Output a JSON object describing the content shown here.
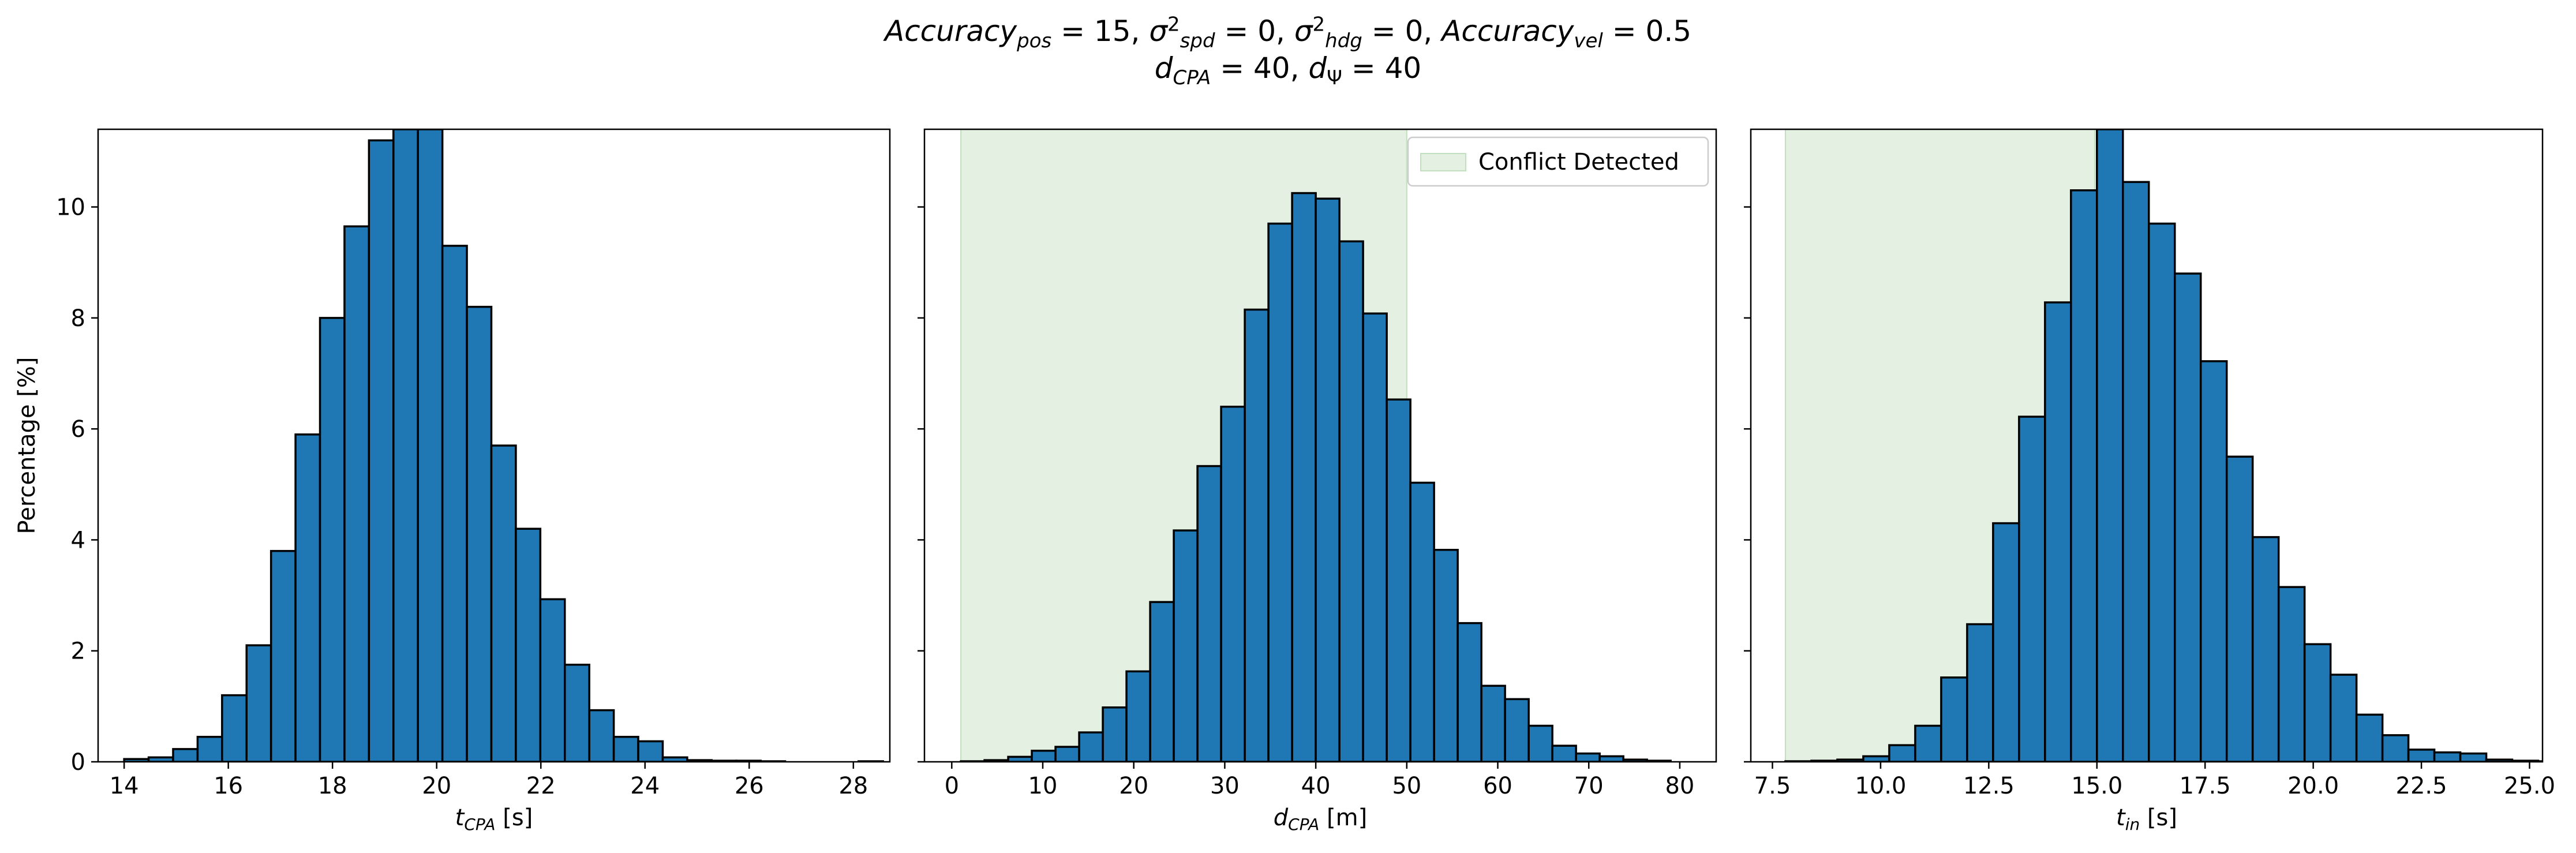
{
  "title": {
    "line1": [
      {
        "t": "Accuracy",
        "it": true
      },
      {
        "t": "pos",
        "sub": true,
        "it": true
      },
      {
        "t": " = 15, "
      },
      {
        "t": "σ",
        "it": true
      },
      {
        "t": "2",
        "sup": true
      },
      {
        "t": "spd",
        "sub": true,
        "it": true
      },
      {
        "t": " = 0, "
      },
      {
        "t": "σ",
        "it": true
      },
      {
        "t": "2",
        "sup": true
      },
      {
        "t": "hdg",
        "sub": true,
        "it": true
      },
      {
        "t": " = 0, "
      },
      {
        "t": "Accuracy",
        "it": true
      },
      {
        "t": "vel",
        "sub": true,
        "it": true
      },
      {
        "t": " = 0.5"
      }
    ],
    "line2": [
      {
        "t": "d",
        "it": true
      },
      {
        "t": "CPA",
        "sub": true,
        "it": true
      },
      {
        "t": " = 40, "
      },
      {
        "t": "d",
        "it": true
      },
      {
        "t": "Ψ",
        "sub": true
      },
      {
        "t": " = 40"
      }
    ]
  },
  "colors": {
    "bar_fill": "#1f77b4",
    "bar_edge": "#000000",
    "conflict_fill": "#e4f0e1",
    "conflict_edge": "#c2dfbf"
  },
  "chart_data": [
    {
      "type": "bar",
      "ylabel": "Percentage [%]",
      "xlabel_parts": [
        {
          "t": "t",
          "it": true
        },
        {
          "t": "CPA",
          "sub": true,
          "it": true
        },
        {
          "t": " [s]"
        }
      ],
      "xlim": [
        13.5,
        28.7
      ],
      "ylim": [
        0,
        11.4
      ],
      "xticks": [
        14,
        16,
        18,
        20,
        22,
        24,
        26,
        28
      ],
      "xtick_labels": [
        "14",
        "16",
        "18",
        "20",
        "22",
        "24",
        "26",
        "28"
      ],
      "yticks": [
        0,
        2,
        4,
        6,
        8,
        10
      ],
      "ytick_labels": [
        "0",
        "2",
        "4",
        "6",
        "8",
        "10"
      ],
      "bin_start": 14.0,
      "bin_width": 0.47,
      "values": [
        0.05,
        0.08,
        0.23,
        0.45,
        1.2,
        2.1,
        3.8,
        5.9,
        8.0,
        9.65,
        11.2,
        11.4,
        11.4,
        9.3,
        8.2,
        5.7,
        4.2,
        2.93,
        1.75,
        0.93,
        0.45,
        0.37,
        0.08,
        0.03,
        0.02,
        0.02,
        0.01,
        0.0,
        0.0,
        0.0,
        0.01
      ],
      "conflict_range": null,
      "legend": null
    },
    {
      "type": "bar",
      "ylabel": "",
      "xlabel_parts": [
        {
          "t": "d",
          "it": true
        },
        {
          "t": "CPA",
          "sub": true,
          "it": true
        },
        {
          "t": " [m]"
        }
      ],
      "xlim": [
        -3,
        84
      ],
      "ylim": [
        0,
        11.4
      ],
      "xticks": [
        0,
        10,
        20,
        30,
        40,
        50,
        60,
        70,
        80
      ],
      "xtick_labels": [
        "0",
        "10",
        "20",
        "30",
        "40",
        "50",
        "60",
        "70",
        "80"
      ],
      "yticks": [
        0,
        2,
        4,
        6,
        8,
        10
      ],
      "ytick_labels": [
        "",
        "",
        "",
        "",
        "",
        ""
      ],
      "bin_start": 1.0,
      "bin_width": 2.6,
      "values": [
        0.01,
        0.03,
        0.09,
        0.2,
        0.27,
        0.53,
        0.98,
        1.63,
        2.88,
        4.17,
        5.33,
        6.4,
        8.15,
        9.7,
        10.25,
        10.15,
        9.38,
        8.08,
        6.53,
        5.03,
        3.82,
        2.5,
        1.37,
        1.13,
        0.65,
        0.29,
        0.15,
        0.1,
        0.04,
        0.02
      ],
      "conflict_range": [
        1.0,
        50.0
      ],
      "legend": {
        "label": "Conflict Detected",
        "position": "upper right"
      }
    },
    {
      "type": "bar",
      "ylabel": "",
      "xlabel_parts": [
        {
          "t": "t",
          "it": true
        },
        {
          "t": "in",
          "sub": true,
          "it": true
        },
        {
          "t": " [s]"
        }
      ],
      "xlim": [
        7.0,
        25.3
      ],
      "ylim": [
        0,
        11.4
      ],
      "xticks": [
        7.5,
        10.0,
        12.5,
        15.0,
        17.5,
        20.0,
        22.5,
        25.0
      ],
      "xtick_labels": [
        "7.5",
        "10.0",
        "12.5",
        "15.0",
        "17.5",
        "20.0",
        "22.5",
        "25.0"
      ],
      "yticks": [
        0,
        2,
        4,
        6,
        8,
        10
      ],
      "ytick_labels": [
        "",
        "",
        "",
        "",
        "",
        ""
      ],
      "bin_start": 7.8,
      "bin_width": 0.6,
      "values": [
        0.01,
        0.02,
        0.04,
        0.1,
        0.3,
        0.65,
        1.52,
        2.48,
        4.3,
        6.22,
        8.28,
        10.3,
        11.4,
        10.45,
        9.7,
        8.8,
        7.22,
        5.5,
        4.05,
        3.15,
        2.12,
        1.57,
        0.85,
        0.48,
        0.22,
        0.17,
        0.15,
        0.04,
        0.02,
        0.01
      ],
      "conflict_range": [
        7.8,
        14.95
      ],
      "legend": null
    }
  ]
}
